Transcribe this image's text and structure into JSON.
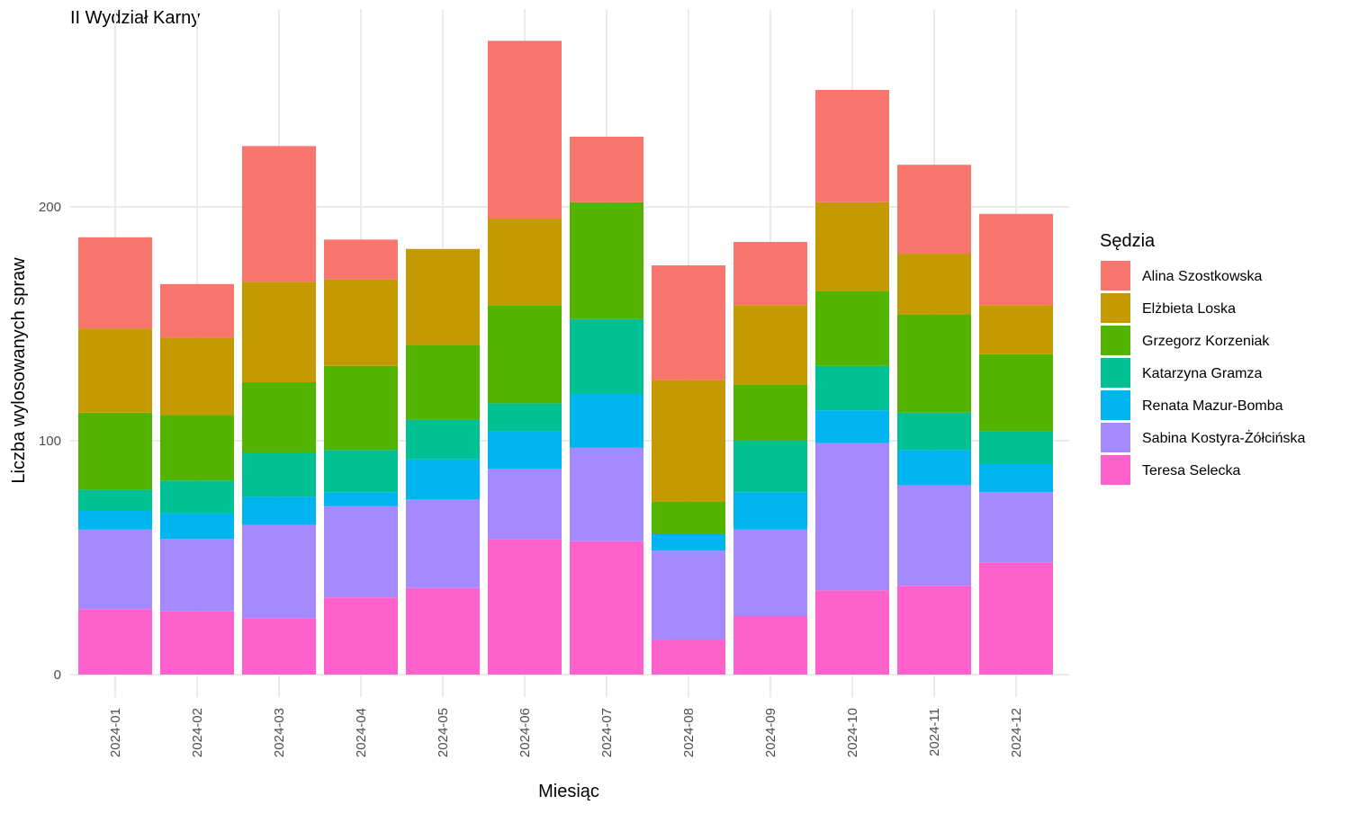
{
  "chart_data": {
    "type": "bar",
    "stacked": true,
    "title": "II Wydział Karny",
    "xlabel": "Miesiąc",
    "ylabel": "Liczba wylosowanych spraw",
    "ylim": [
      0,
      280
    ],
    "yticks": [
      0,
      100,
      200
    ],
    "grid": true,
    "legend_position": "right",
    "legend_title": "Sędzia",
    "categories": [
      "2024-01",
      "2024-02",
      "2024-03",
      "2024-04",
      "2024-05",
      "2024-06",
      "2024-07",
      "2024-08",
      "2024-09",
      "2024-10",
      "2024-11",
      "2024-12"
    ],
    "series": [
      {
        "name": "Teresa Selecka",
        "color": "#FF61CC",
        "values": [
          28,
          27,
          24,
          33,
          37,
          58,
          57,
          15,
          25,
          36,
          38,
          48
        ]
      },
      {
        "name": "Sabina Kostyra-Żółcińska",
        "color": "#A58AFF",
        "values": [
          34,
          31,
          40,
          39,
          38,
          30,
          40,
          38,
          37,
          63,
          43,
          30
        ]
      },
      {
        "name": "Renata Mazur-Bomba",
        "color": "#00B4EF",
        "values": [
          8,
          11,
          12,
          6,
          17,
          16,
          23,
          7,
          16,
          14,
          15,
          12
        ]
      },
      {
        "name": "Katarzyna Gramza",
        "color": "#00C094",
        "values": [
          9,
          14,
          19,
          18,
          17,
          12,
          32,
          0,
          22,
          19,
          16,
          14
        ]
      },
      {
        "name": "Grzegorz Korzeniak",
        "color": "#53B400",
        "values": [
          33,
          28,
          30,
          36,
          32,
          42,
          50,
          14,
          24,
          32,
          42,
          33
        ]
      },
      {
        "name": "Elżbieta Loska",
        "color": "#C49A00",
        "values": [
          36,
          33,
          43,
          37,
          41,
          37,
          0,
          52,
          34,
          38,
          26,
          21
        ]
      },
      {
        "name": "Alina Szostkowska",
        "color": "#F8766D",
        "values": [
          39,
          23,
          58,
          17,
          0,
          76,
          28,
          49,
          27,
          48,
          38,
          39
        ]
      }
    ],
    "legend_order": [
      "Alina Szostkowska",
      "Elżbieta Loska",
      "Grzegorz Korzeniak",
      "Katarzyna Gramza",
      "Renata Mazur-Bomba",
      "Sabina Kostyra-Żółcińska",
      "Teresa Selecka"
    ]
  }
}
